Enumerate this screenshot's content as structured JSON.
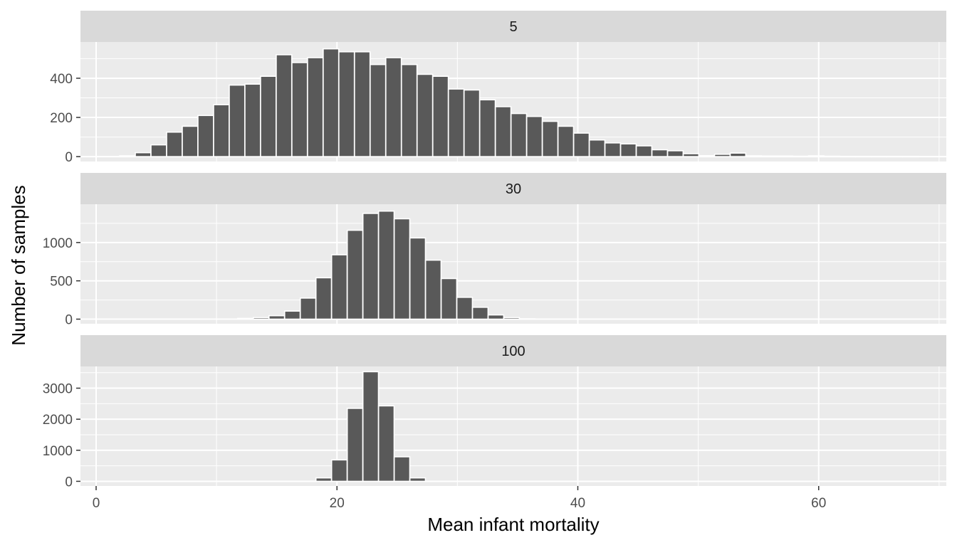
{
  "chart_data": {
    "type": "bar",
    "xlabel": "Mean infant mortality",
    "ylabel": "Number of samples",
    "xlim": [
      -1.3,
      70.6
    ],
    "x_ticks": [
      0,
      20,
      40,
      60
    ],
    "bin_width": 1.29,
    "grid": true,
    "colors": {
      "bar_fill": "#595959",
      "bar_stroke": "#ffffff",
      "panel_bg": "#ebebeb",
      "strip_bg": "#d9d9d9",
      "grid": "#ffffff",
      "axis_text": "#4d4d4d",
      "title_text": "#000000",
      "strip_text": "#1a1a1a"
    },
    "facets": [
      {
        "label": "5",
        "ylim": [
          -25,
          585
        ],
        "y_ticks": [
          0,
          200,
          400
        ],
        "bins": [
          [
            2.6,
            4
          ],
          [
            3.9,
            20
          ],
          [
            5.2,
            60
          ],
          [
            6.5,
            125
          ],
          [
            7.8,
            155
          ],
          [
            9.1,
            210
          ],
          [
            10.4,
            265
          ],
          [
            11.7,
            365
          ],
          [
            13.0,
            370
          ],
          [
            14.3,
            410
          ],
          [
            15.6,
            520
          ],
          [
            16.9,
            480
          ],
          [
            18.2,
            505
          ],
          [
            19.5,
            550
          ],
          [
            20.8,
            535
          ],
          [
            22.1,
            535
          ],
          [
            23.4,
            470
          ],
          [
            24.7,
            505
          ],
          [
            26.0,
            470
          ],
          [
            27.3,
            420
          ],
          [
            28.6,
            410
          ],
          [
            29.9,
            345
          ],
          [
            31.2,
            340
          ],
          [
            32.5,
            290
          ],
          [
            33.8,
            255
          ],
          [
            35.1,
            220
          ],
          [
            36.4,
            205
          ],
          [
            37.7,
            180
          ],
          [
            39.0,
            155
          ],
          [
            40.3,
            120
          ],
          [
            41.6,
            85
          ],
          [
            42.9,
            70
          ],
          [
            44.2,
            65
          ],
          [
            45.5,
            55
          ],
          [
            46.8,
            35
          ],
          [
            48.1,
            30
          ],
          [
            49.4,
            15
          ],
          [
            50.7,
            5
          ],
          [
            52.0,
            12
          ],
          [
            53.3,
            18
          ],
          [
            54.6,
            4
          ],
          [
            55.9,
            3
          ],
          [
            57.2,
            3
          ],
          [
            58.5,
            2
          ],
          [
            59.8,
            4
          ],
          [
            61.1,
            2
          ],
          [
            62.4,
            1
          ],
          [
            63.7,
            1
          ],
          [
            65.0,
            1
          ],
          [
            66.3,
            1
          ],
          [
            67.6,
            1
          ]
        ]
      },
      {
        "label": "30",
        "ylim": [
          -60,
          1500
        ],
        "y_ticks": [
          0,
          500,
          1000
        ],
        "bins": [
          [
            12.4,
            10
          ],
          [
            13.7,
            20
          ],
          [
            15.0,
            45
          ],
          [
            16.3,
            105
          ],
          [
            17.6,
            275
          ],
          [
            18.9,
            540
          ],
          [
            20.2,
            840
          ],
          [
            21.5,
            1160
          ],
          [
            22.8,
            1380
          ],
          [
            24.1,
            1410
          ],
          [
            25.4,
            1310
          ],
          [
            26.7,
            1060
          ],
          [
            28.0,
            770
          ],
          [
            29.3,
            530
          ],
          [
            30.6,
            285
          ],
          [
            31.9,
            155
          ],
          [
            33.2,
            55
          ],
          [
            34.5,
            20
          ],
          [
            35.8,
            5
          ]
        ]
      },
      {
        "label": "100",
        "ylim": [
          -150,
          3700
        ],
        "y_ticks": [
          0,
          1000,
          2000,
          3000
        ],
        "bins": [
          [
            18.9,
            110
          ],
          [
            20.2,
            690
          ],
          [
            21.5,
            2350
          ],
          [
            22.8,
            3530
          ],
          [
            24.1,
            2430
          ],
          [
            25.4,
            790
          ],
          [
            26.7,
            110
          ]
        ]
      }
    ]
  }
}
